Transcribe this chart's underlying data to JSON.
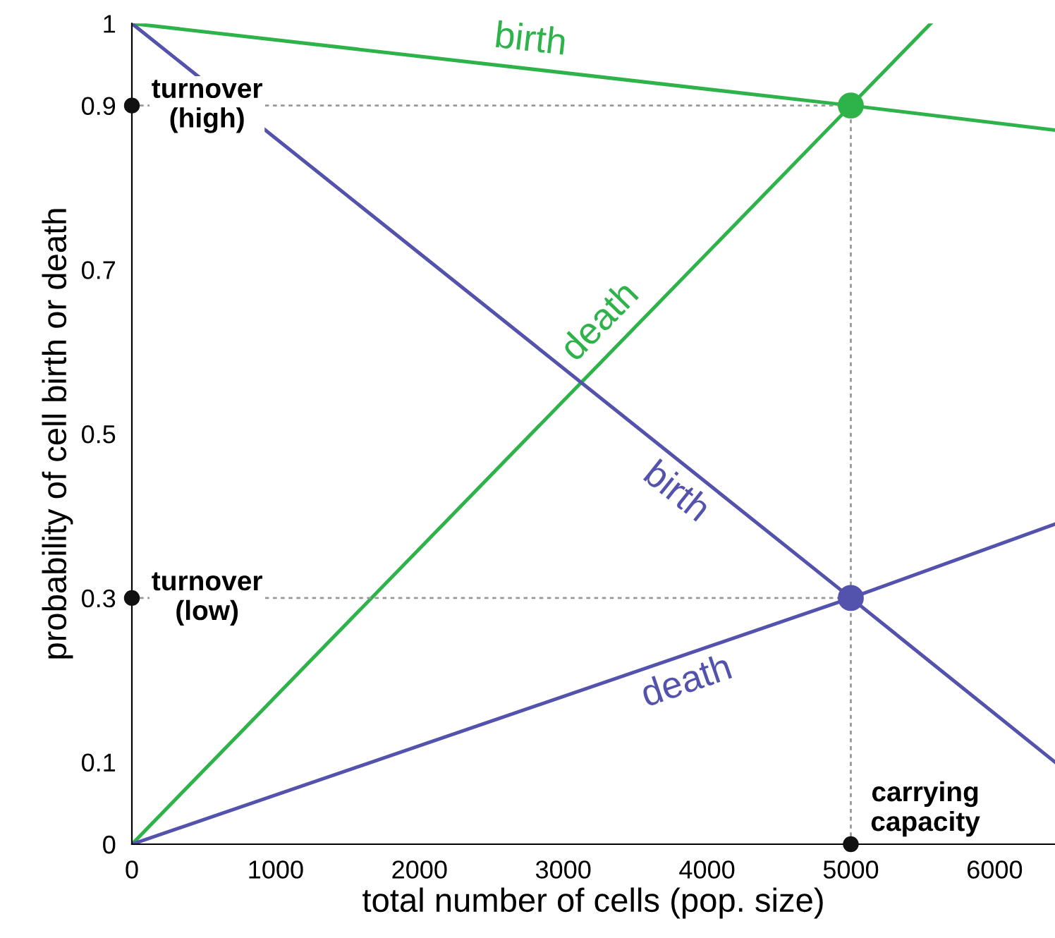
{
  "chart_data": {
    "type": "line",
    "xlabel": "total number of cells (pop. size)",
    "ylabel": "probability of cell birth or death",
    "xlim": [
      0,
      6420
    ],
    "ylim": [
      0,
      1
    ],
    "xticks": [
      0,
      1000,
      2000,
      3000,
      4000,
      5000,
      6000
    ],
    "yticks": [
      0,
      0.1,
      0.3,
      0.5,
      0.7,
      0.9,
      1
    ],
    "grid": false,
    "legend": false,
    "series": [
      {
        "name": "birth",
        "color": "#2eb24a",
        "x": [
          0,
          5000,
          6420
        ],
        "values": [
          1,
          0.9,
          0.87
        ]
      },
      {
        "name": "death",
        "color": "#2eb24a",
        "x": [
          0,
          5000,
          5556
        ],
        "values": [
          0,
          0.9,
          1
        ]
      },
      {
        "name": "birth",
        "color": "#5353ad",
        "x": [
          0,
          5000,
          6420
        ],
        "values": [
          1,
          0.3,
          0.1
        ]
      },
      {
        "name": "death",
        "color": "#5353ad",
        "x": [
          0,
          5000,
          6420
        ],
        "values": [
          0,
          0.3,
          0.39
        ]
      },
      {
        "type": "line",
        "line_style": "dotted",
        "color": "#999999",
        "x": [
          0,
          5000
        ],
        "values": [
          0.9,
          0.9
        ]
      },
      {
        "type": "line",
        "line_style": "dotted",
        "color": "#999999",
        "x": [
          0,
          5000
        ],
        "values": [
          0.3,
          0.3
        ]
      },
      {
        "type": "line",
        "line_style": "dotted",
        "color": "#999999",
        "x": [
          5000,
          5000
        ],
        "values": [
          0,
          0.9
        ]
      },
      {
        "type": "scatter",
        "color": "#2eb24a",
        "x": [
          5000
        ],
        "values": [
          0.9
        ]
      },
      {
        "type": "scatter",
        "color": "#5353ad",
        "x": [
          5000
        ],
        "values": [
          0.3
        ]
      },
      {
        "type": "scatter",
        "color": "#111111",
        "x": [
          0,
          0,
          5000
        ],
        "values": [
          0.9,
          0.3,
          0
        ]
      }
    ],
    "annotations": [
      "turnover\n(high)",
      "turnover\n(low)",
      "carrying\ncapacity"
    ]
  }
}
